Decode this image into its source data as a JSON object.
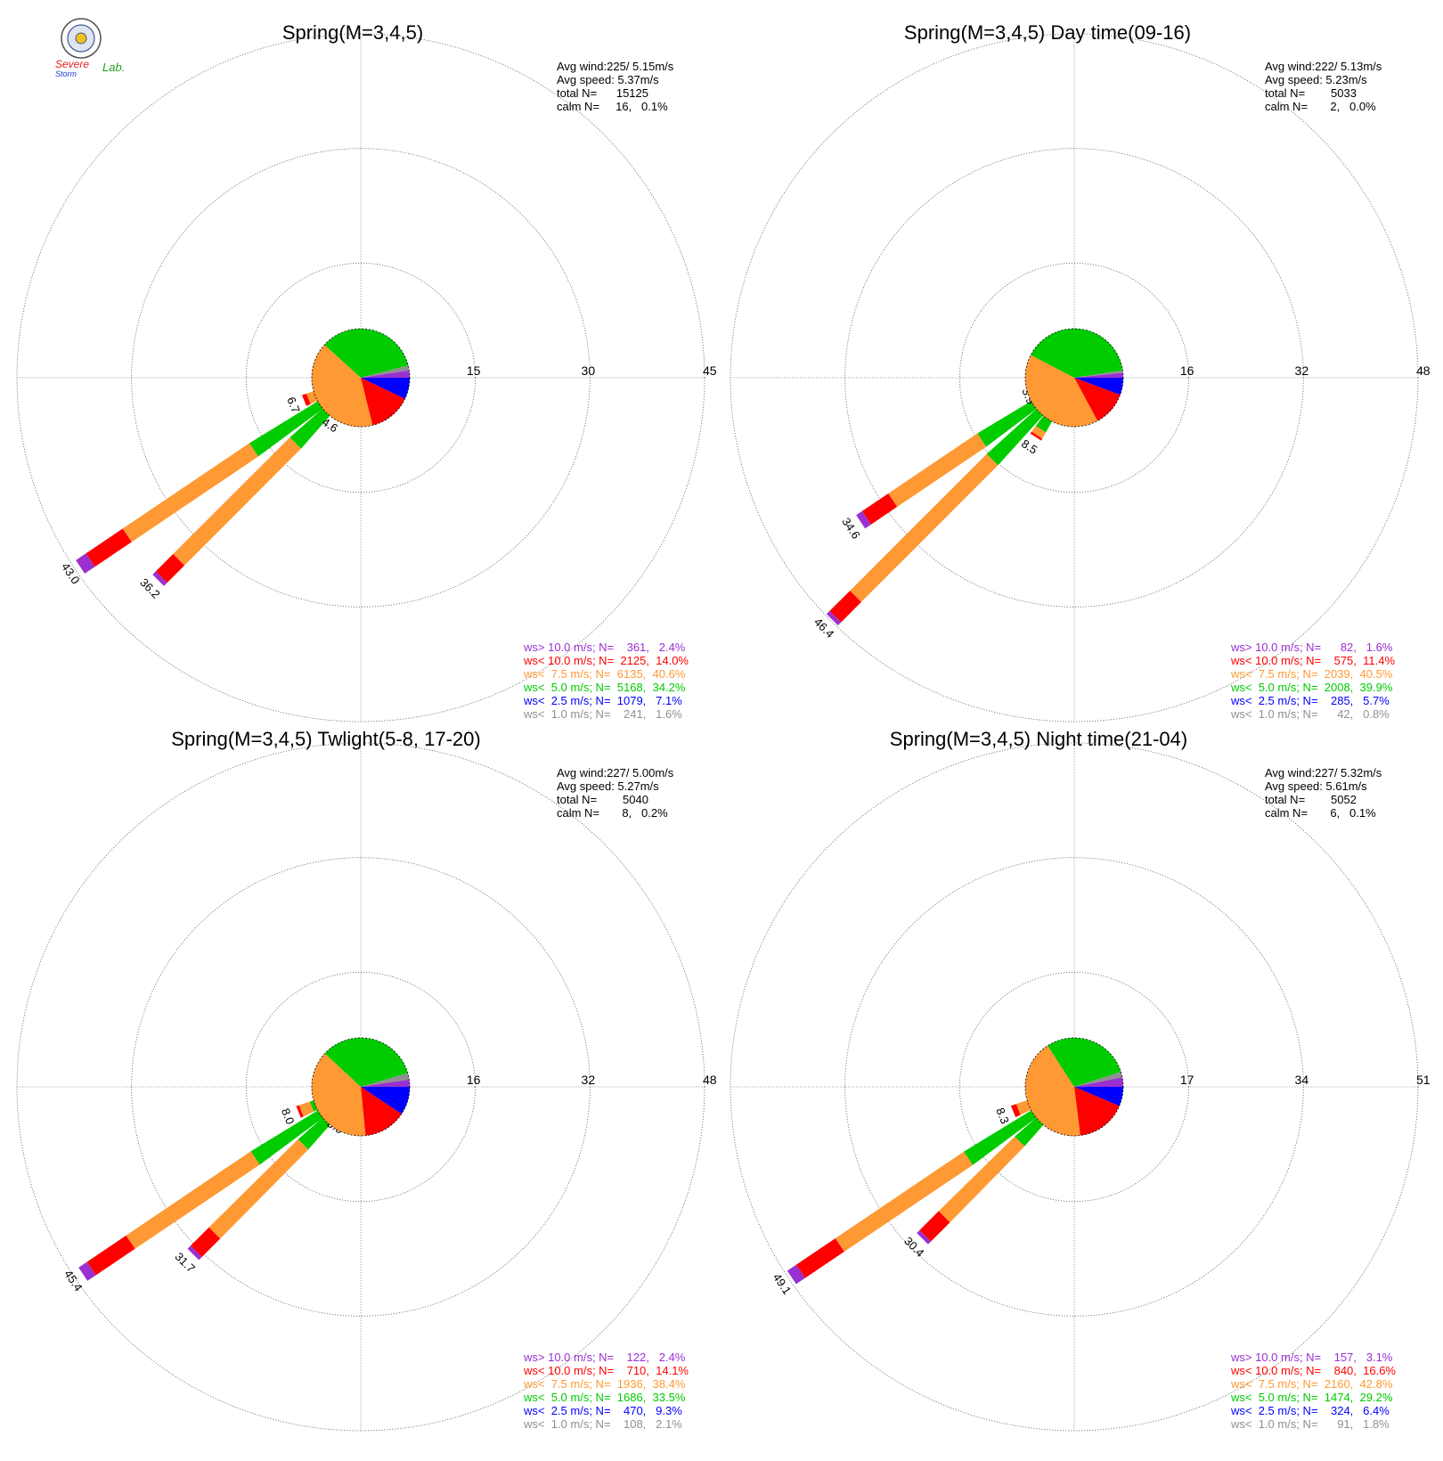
{
  "logo": {
    "line1": "Severe",
    "line2": "Storm",
    "line3": "Lab.",
    "seal_colors": [
      "#1a3a8a",
      "#f0c020",
      "#888888"
    ]
  },
  "colors": {
    "cat0": "#9b30d0",
    "cat1": "#ff0000",
    "cat2": "#ff9933",
    "cat3": "#00cc00",
    "cat4": "#0000ff",
    "cat5": "#909090",
    "grid": "#9a9a9a"
  },
  "chart_data": [
    {
      "type": "wind-rose",
      "title": "Spring(M=3,4,5)",
      "stats": [
        "Avg wind:225/ 5.15m/s",
        "Avg speed: 5.37m/s",
        "total N=      15125",
        "calm N=     16,   0.1%"
      ],
      "rings": [
        15,
        30,
        45
      ],
      "ring_labels": [
        "15",
        "30",
        "45"
      ],
      "bars": [
        {
          "dir_deg": 225,
          "total": 36.2,
          "label": "36.2",
          "parts": [
            0.6,
            3.2,
            21.6,
            10.0,
            0.6,
            0.2
          ]
        },
        {
          "dir_deg": 236,
          "total": 43.0,
          "label": "43.0",
          "parts": [
            1.6,
            5.8,
            20.0,
            14.4,
            0.8,
            0.4
          ]
        },
        {
          "dir_deg": 213,
          "total": 4.6,
          "label": "4.6",
          "parts": [
            0.0,
            0.4,
            1.0,
            2.6,
            0.4,
            0.2
          ]
        },
        {
          "dir_deg": 248,
          "total": 6.7,
          "label": "6.7",
          "parts": [
            0.0,
            0.6,
            1.2,
            4.2,
            0.5,
            0.2
          ]
        }
      ],
      "legend": [
        {
          "text": "ws> 10.0 m/s; N=    361,   2.4%",
          "color": "cat0"
        },
        {
          "text": "ws< 10.0 m/s; N=  2125,  14.0%",
          "color": "cat1"
        },
        {
          "text": "ws<  7.5 m/s; N=  6135,  40.6%",
          "color": "cat2"
        },
        {
          "text": "ws<  5.0 m/s; N=  5168,  34.2%",
          "color": "cat3"
        },
        {
          "text": "ws<  2.5 m/s; N=  1079,   7.1%",
          "color": "cat4"
        },
        {
          "text": "ws<  1.0 m/s; N=    241,   1.6%",
          "color": "cat5"
        }
      ],
      "pie": [
        2.4,
        14.0,
        40.6,
        34.2,
        7.1,
        1.6
      ]
    },
    {
      "type": "wind-rose",
      "title": "Spring(M=3,4,5) Day time(09-16)",
      "stats": [
        "Avg wind:222/ 5.13m/s",
        "Avg speed: 5.23m/s",
        "total N=        5033",
        "calm N=       2,   0.0%"
      ],
      "rings": [
        16,
        32,
        48
      ],
      "ring_labels": [
        "16",
        "32",
        "48"
      ],
      "bars": [
        {
          "dir_deg": 225,
          "total": 46.4,
          "label": "46.4",
          "parts": [
            0.6,
            4.0,
            27.0,
            13.8,
            0.8,
            0.2
          ]
        },
        {
          "dir_deg": 236,
          "total": 34.6,
          "label": "34.6",
          "parts": [
            1.0,
            4.4,
            15.0,
            13.3,
            0.7,
            0.2
          ]
        },
        {
          "dir_deg": 213,
          "total": 8.5,
          "label": "8.5",
          "parts": [
            0.0,
            0.3,
            1.0,
            6.4,
            0.6,
            0.2
          ]
        },
        {
          "dir_deg": 248,
          "total": 3.9,
          "label": "3.9",
          "parts": [
            0.0,
            0.1,
            0.5,
            2.8,
            0.4,
            0.1
          ]
        }
      ],
      "legend": [
        {
          "text": "ws> 10.0 m/s; N=      82,   1.6%",
          "color": "cat0"
        },
        {
          "text": "ws< 10.0 m/s; N=    575,  11.4%",
          "color": "cat1"
        },
        {
          "text": "ws<  7.5 m/s; N=  2039,  40.5%",
          "color": "cat2"
        },
        {
          "text": "ws<  5.0 m/s; N=  2008,  39.9%",
          "color": "cat3"
        },
        {
          "text": "ws<  2.5 m/s; N=    285,   5.7%",
          "color": "cat4"
        },
        {
          "text": "ws<  1.0 m/s; N=      42,   0.8%",
          "color": "cat5"
        }
      ],
      "pie": [
        1.6,
        11.4,
        40.5,
        39.9,
        5.7,
        0.8
      ]
    },
    {
      "type": "wind-rose",
      "title": "Spring(M=3,4,5) Twlight(5-8, 17-20)",
      "stats": [
        "Avg wind:227/ 5.00m/s",
        "Avg speed: 5.27m/s",
        "total N=        5040",
        "calm N=       8,   0.2%"
      ],
      "rings": [
        16,
        32,
        48
      ],
      "ring_labels": [
        "16",
        "32",
        "48"
      ],
      "bars": [
        {
          "dir_deg": 225,
          "total": 31.7,
          "label": "31.7",
          "parts": [
            0.6,
            3.6,
            17.5,
            9.0,
            0.7,
            0.3
          ]
        },
        {
          "dir_deg": 236,
          "total": 45.4,
          "label": "45.4",
          "parts": [
            1.4,
            6.6,
            21.0,
            15.4,
            0.7,
            0.3
          ]
        },
        {
          "dir_deg": 213,
          "total": 3.6,
          "label": "3.6",
          "parts": [
            0.0,
            0.3,
            0.6,
            2.2,
            0.4,
            0.1
          ]
        },
        {
          "dir_deg": 248,
          "total": 8.0,
          "label": "8.0",
          "parts": [
            0.0,
            0.4,
            1.6,
            5.2,
            0.6,
            0.2
          ]
        }
      ],
      "legend": [
        {
          "text": "ws> 10.0 m/s; N=    122,   2.4%",
          "color": "cat0"
        },
        {
          "text": "ws< 10.0 m/s; N=    710,  14.1%",
          "color": "cat1"
        },
        {
          "text": "ws<  7.5 m/s; N=  1936,  38.4%",
          "color": "cat2"
        },
        {
          "text": "ws<  5.0 m/s; N=  1686,  33.5%",
          "color": "cat3"
        },
        {
          "text": "ws<  2.5 m/s; N=    470,   9.3%",
          "color": "cat4"
        },
        {
          "text": "ws<  1.0 m/s; N=    108,   2.1%",
          "color": "cat5"
        }
      ],
      "pie": [
        2.4,
        14.1,
        38.4,
        33.5,
        9.3,
        2.1
      ]
    },
    {
      "type": "wind-rose",
      "title": "Spring(M=3,4,5) Night time(21-04)",
      "stats": [
        "Avg wind:227/ 5.32m/s",
        "Avg speed: 5.61m/s",
        "total N=        5052",
        "calm N=       6,   0.1%"
      ],
      "rings": [
        17,
        34,
        51
      ],
      "ring_labels": [
        "17",
        "34",
        "51"
      ],
      "bars": [
        {
          "dir_deg": 225,
          "total": 30.4,
          "label": "30.4",
          "parts": [
            0.6,
            4.0,
            15.8,
            9.2,
            0.6,
            0.2
          ]
        },
        {
          "dir_deg": 236,
          "total": 49.1,
          "label": "49.1",
          "parts": [
            1.6,
            7.0,
            23.0,
            16.5,
            0.7,
            0.3
          ]
        },
        {
          "dir_deg": 248,
          "total": 8.3,
          "label": "8.3",
          "parts": [
            0.0,
            0.8,
            1.8,
            4.9,
            0.6,
            0.2
          ]
        }
      ],
      "legend": [
        {
          "text": "ws> 10.0 m/s; N=    157,   3.1%",
          "color": "cat0"
        },
        {
          "text": "ws< 10.0 m/s; N=    840,  16.6%",
          "color": "cat1"
        },
        {
          "text": "ws<  7.5 m/s; N=  2160,  42.8%",
          "color": "cat2"
        },
        {
          "text": "ws<  5.0 m/s; N=  1474,  29.2%",
          "color": "cat3"
        },
        {
          "text": "ws<  2.5 m/s; N=    324,   6.4%",
          "color": "cat4"
        },
        {
          "text": "ws<  1.0 m/s; N=      91,   1.8%",
          "color": "cat5"
        }
      ],
      "pie": [
        3.1,
        16.6,
        42.8,
        29.2,
        6.4,
        1.8
      ]
    }
  ]
}
